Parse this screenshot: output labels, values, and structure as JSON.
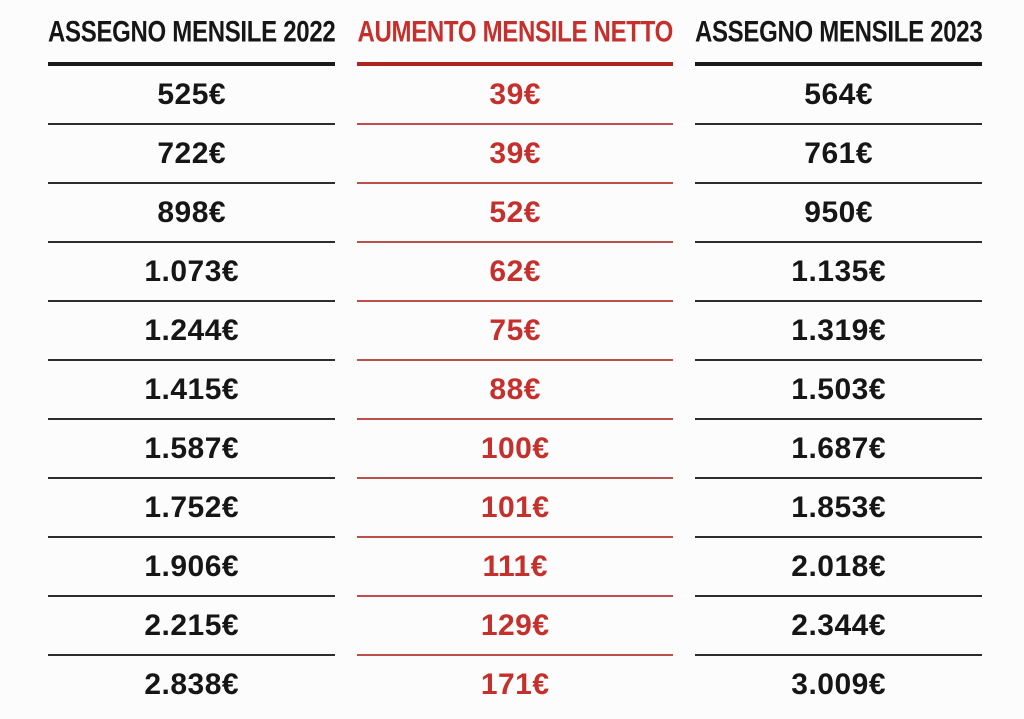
{
  "chart_data": {
    "type": "table",
    "title": "",
    "columns": [
      "ASSEGNO MENSILE 2022",
      "AUMENTO MENSILE NETTO",
      "ASSEGNO MENSILE 2023"
    ],
    "rows": [
      [
        "525€",
        "39€",
        "564€"
      ],
      [
        "722€",
        "39€",
        "761€"
      ],
      [
        "898€",
        "52€",
        "950€"
      ],
      [
        "1.073€",
        "62€",
        "1.135€"
      ],
      [
        "1.244€",
        "75€",
        "1.319€"
      ],
      [
        "1.415€",
        "88€",
        "1.503€"
      ],
      [
        "1.587€",
        "100€",
        "1.687€"
      ],
      [
        "1.752€",
        "101€",
        "1.853€"
      ],
      [
        "1.906€",
        "111€",
        "2.018€"
      ],
      [
        "2.215€",
        "129€",
        "2.344€"
      ],
      [
        "2.838€",
        "171€",
        "3.009€"
      ]
    ],
    "values_2022": [
      525,
      722,
      898,
      1073,
      1244,
      1415,
      1587,
      1752,
      1906,
      2215,
      2838
    ],
    "increase_net_eur": [
      39,
      39,
      52,
      62,
      75,
      88,
      100,
      101,
      111,
      129,
      171
    ],
    "values_2023": [
      564,
      761,
      950,
      1135,
      1319,
      1503,
      1687,
      1853,
      2018,
      2344,
      3009
    ],
    "currency": "EUR",
    "layout": {
      "grid": "horizontal-row-separators-only",
      "legend": "none",
      "middle_column_accented": true
    }
  },
  "colors": {
    "text_black": "#161616",
    "accent_red": "#c5302d",
    "line_black": "#2d2d2d",
    "line_red": "#bb4f4c",
    "header_line_black": "#1a1a1a",
    "header_line_red": "#ab2523",
    "background": "#fcfcfc"
  }
}
